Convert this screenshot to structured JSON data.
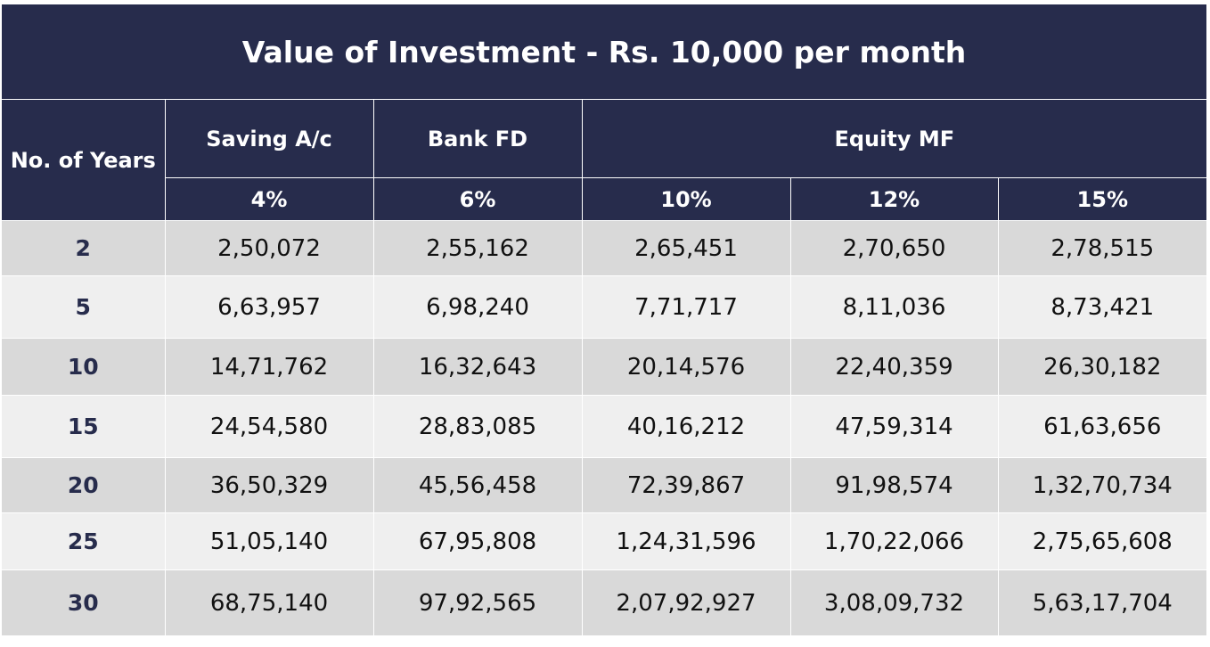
{
  "title": "Value of Investment - Rs. 10,000 per month",
  "headers": {
    "years": "No. of Years",
    "saving": "Saving A/c",
    "fd": "Bank FD",
    "equity": "Equity MF",
    "rates": [
      "4%",
      "6%",
      "10%",
      "12%",
      "15%"
    ]
  },
  "rows": [
    {
      "years": "2",
      "values": [
        "2,50,072",
        "2,55,162",
        "2,65,451",
        "2,70,650",
        "2,78,515"
      ]
    },
    {
      "years": "5",
      "values": [
        "6,63,957",
        "6,98,240",
        "7,71,717",
        "8,11,036",
        "8,73,421"
      ]
    },
    {
      "years": "10",
      "values": [
        "14,71,762",
        "16,32,643",
        "20,14,576",
        "22,40,359",
        "26,30,182"
      ]
    },
    {
      "years": "15",
      "values": [
        "24,54,580",
        "28,83,085",
        "40,16,212",
        "47,59,314",
        "61,63,656"
      ]
    },
    {
      "years": "20",
      "values": [
        "36,50,329",
        "45,56,458",
        "72,39,867",
        "91,98,574",
        "1,32,70,734"
      ]
    },
    {
      "years": "25",
      "values": [
        "51,05,140",
        "67,95,808",
        "1,24,31,596",
        "1,70,22,066",
        "2,75,65,608"
      ]
    },
    {
      "years": "30",
      "values": [
        "68,75,140",
        "97,92,565",
        "2,07,92,927",
        "3,08,09,732",
        "5,63,17,704"
      ]
    }
  ],
  "colors": {
    "header_bg": "#272c4c",
    "header_text": "#ffffff",
    "row_dark": "#d9d9d9",
    "row_light": "#efefef",
    "years_text": "#272c4c"
  }
}
